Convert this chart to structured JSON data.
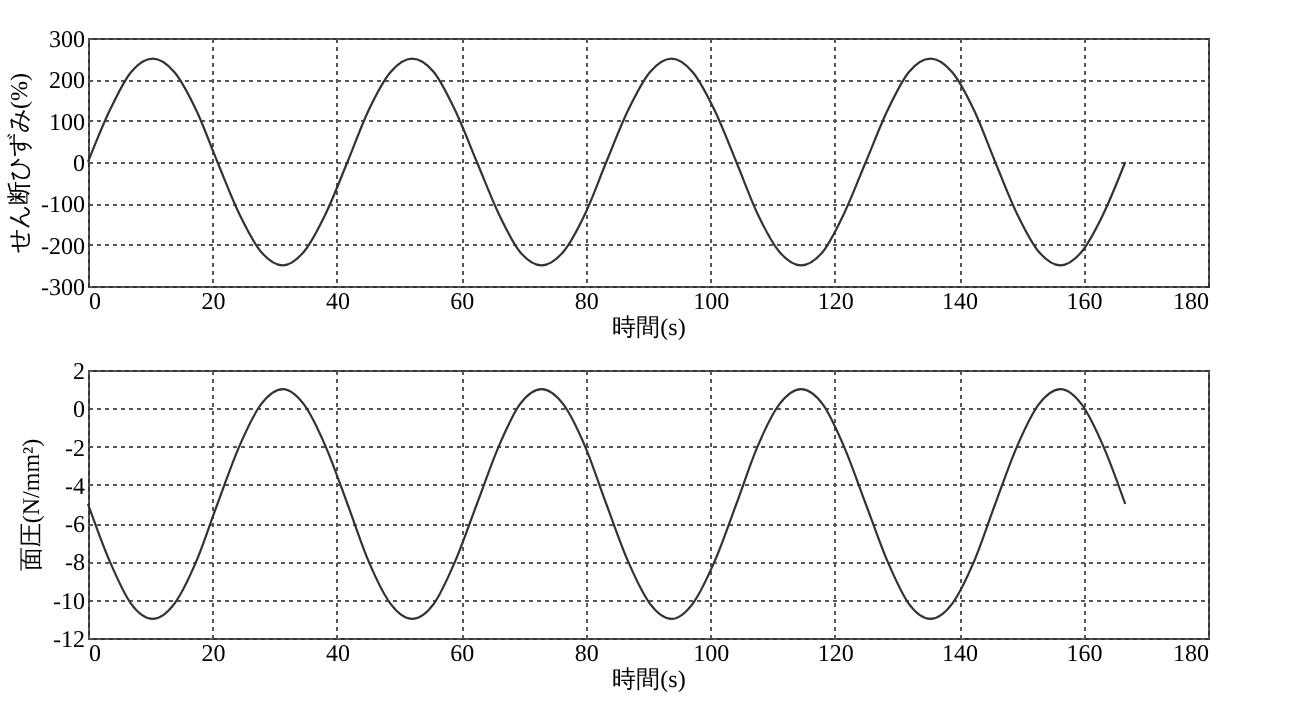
{
  "chart_data": [
    {
      "type": "line",
      "xlabel": "時間(s)",
      "ylabel": "せん断ひずみ(%)",
      "xlim": [
        0,
        180
      ],
      "xticks": [
        0,
        20,
        40,
        60,
        80,
        100,
        120,
        140,
        160,
        180
      ],
      "ylim": [
        -300,
        300
      ],
      "yticks": [
        -300,
        -200,
        -100,
        0,
        100,
        200,
        300
      ],
      "grid": true,
      "marker": "none",
      "line_style": "solid",
      "x": [
        0,
        3.5,
        6.9,
        10.4,
        13.9,
        17.4,
        20.8,
        24.3,
        27.8,
        31.3,
        34.7,
        38.2,
        41.7,
        45.1,
        48.6,
        52.1,
        55.6,
        59.0,
        62.5,
        66.0,
        69.4,
        72.9,
        76.4,
        79.9,
        83.3,
        86.8,
        90.3,
        93.8,
        97.2,
        100.7,
        104.2,
        107.6,
        111.1,
        114.6,
        118.1,
        121.5,
        125.0,
        128.5,
        131.9,
        135.4,
        138.9,
        142.4,
        145.8,
        149.3,
        152.8,
        156.3,
        159.7,
        163.2,
        166.7
      ],
      "series": [
        {
          "color": "#333333",
          "values": [
            0,
            125,
            217,
            250,
            217,
            125,
            0,
            -125,
            -217,
            -250,
            -217,
            -125,
            0,
            125,
            217,
            250,
            217,
            125,
            0,
            -125,
            -217,
            -250,
            -217,
            -125,
            0,
            125,
            217,
            250,
            217,
            125,
            0,
            -125,
            -217,
            -250,
            -217,
            -125,
            0,
            125,
            217,
            250,
            217,
            125,
            0,
            -125,
            -217,
            -250,
            -217,
            -125,
            0
          ]
        }
      ]
    },
    {
      "type": "line",
      "xlabel": "時間(s)",
      "ylabel": "面圧(N/mm²)",
      "xlim": [
        0,
        180
      ],
      "xticks": [
        0,
        20,
        40,
        60,
        80,
        100,
        120,
        140,
        160,
        180
      ],
      "ylim": [
        -12,
        2
      ],
      "yticks": [
        -12,
        -10,
        -8,
        -6,
        -4,
        -2,
        0,
        2
      ],
      "grid": true,
      "marker": "none",
      "line_style": "solid",
      "x": [
        0,
        3.5,
        6.9,
        10.4,
        13.9,
        17.4,
        20.8,
        24.3,
        27.8,
        31.3,
        34.7,
        38.2,
        41.7,
        45.1,
        48.6,
        52.1,
        55.6,
        59.0,
        62.5,
        66.0,
        69.4,
        72.9,
        76.4,
        79.9,
        83.3,
        86.8,
        90.3,
        93.8,
        97.2,
        100.7,
        104.2,
        107.6,
        111.1,
        114.6,
        118.1,
        121.5,
        125.0,
        128.5,
        131.9,
        135.4,
        138.9,
        142.4,
        145.8,
        149.3,
        152.8,
        156.3,
        159.7,
        163.2,
        166.7
      ],
      "series": [
        {
          "color": "#333333",
          "values": [
            -5,
            -8,
            -10.2,
            -11,
            -10.2,
            -8,
            -5,
            -2,
            0.2,
            1,
            0.2,
            -2,
            -5,
            -8,
            -10.2,
            -11,
            -10.2,
            -8,
            -5,
            -2,
            0.2,
            1,
            0.2,
            -2,
            -5,
            -8,
            -10.2,
            -11,
            -10.2,
            -8,
            -5,
            -2,
            0.2,
            1,
            0.2,
            -2,
            -5,
            -8,
            -10.2,
            -11,
            -10.2,
            -8,
            -5,
            -2,
            0.2,
            1,
            0.2,
            -2,
            -5
          ]
        }
      ]
    }
  ]
}
